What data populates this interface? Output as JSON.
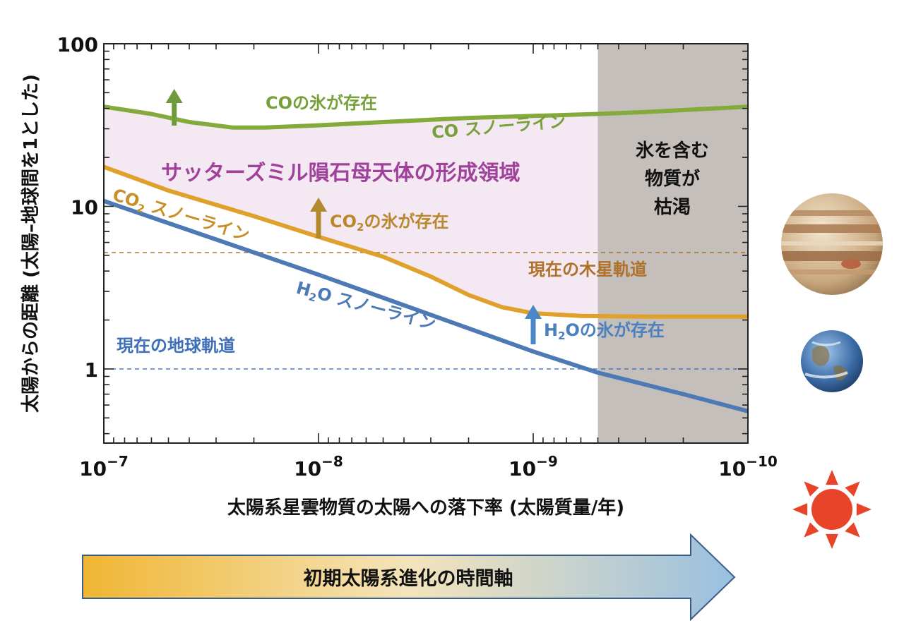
{
  "chart_data": {
    "type": "line",
    "x_scale": "log",
    "y_scale": "log",
    "x_reversed": true,
    "xlim": [
      1e-07,
      1e-10
    ],
    "ylim": [
      0.35,
      100
    ],
    "grid": false,
    "xlabel": "太陽系星雲物質の太陽への落下率 (太陽質量/年)",
    "ylabel": "太陽からの距離 (太陽–地球間を1とした)",
    "x_ticks": [
      {
        "value": 1e-07,
        "base": "10",
        "exp": "−7"
      },
      {
        "value": 1e-08,
        "base": "10",
        "exp": "−8"
      },
      {
        "value": 1e-09,
        "base": "10",
        "exp": "−9"
      },
      {
        "value": 1e-10,
        "base": "10",
        "exp": "−10"
      }
    ],
    "y_ticks": [
      {
        "value": 1,
        "label": "1"
      },
      {
        "value": 10,
        "label": "10"
      },
      {
        "value": 100,
        "label": "100"
      }
    ],
    "series": [
      {
        "name": "CO スノーライン",
        "color": "#85aa3c",
        "points": [
          {
            "x": 1e-07,
            "y": 41
          },
          {
            "x": 6e-08,
            "y": 37
          },
          {
            "x": 4e-08,
            "y": 33
          },
          {
            "x": 2.5e-08,
            "y": 30.5
          },
          {
            "x": 1.8e-08,
            "y": 30.5
          },
          {
            "x": 1e-08,
            "y": 31.5
          },
          {
            "x": 5e-09,
            "y": 33
          },
          {
            "x": 2e-09,
            "y": 35
          },
          {
            "x": 1e-09,
            "y": 36
          },
          {
            "x": 5e-10,
            "y": 37
          },
          {
            "x": 3e-10,
            "y": 38
          },
          {
            "x": 1e-10,
            "y": 41
          }
        ]
      },
      {
        "name": "CO₂ スノーライン",
        "color": "#e0a02c",
        "points": [
          {
            "x": 1e-07,
            "y": 17.5
          },
          {
            "x": 5e-08,
            "y": 12.5
          },
          {
            "x": 2e-08,
            "y": 8.7
          },
          {
            "x": 1e-08,
            "y": 6.5
          },
          {
            "x": 5e-09,
            "y": 4.9
          },
          {
            "x": 3e-09,
            "y": 3.7
          },
          {
            "x": 2e-09,
            "y": 2.85
          },
          {
            "x": 1.4e-09,
            "y": 2.4
          },
          {
            "x": 1e-09,
            "y": 2.2
          },
          {
            "x": 6e-10,
            "y": 2.12
          },
          {
            "x": 3e-10,
            "y": 2.1
          },
          {
            "x": 1e-10,
            "y": 2.1
          }
        ]
      },
      {
        "name": "H₂O スノーライン",
        "color": "#4d79b4",
        "points": [
          {
            "x": 1e-07,
            "y": 10.8
          },
          {
            "x": 1e-08,
            "y": 3.8
          },
          {
            "x": 1e-09,
            "y": 1.28
          },
          {
            "x": 5e-10,
            "y": 0.95
          },
          {
            "x": 2e-10,
            "y": 0.7
          },
          {
            "x": 1e-10,
            "y": 0.55
          }
        ]
      }
    ],
    "reference_lines": [
      {
        "name": "現在の木星軌道",
        "y": 5.2,
        "color": "#a86b28"
      },
      {
        "name": "現在の地球軌道",
        "y": 1.0,
        "color": "#3f6fb8"
      }
    ],
    "shaded_regions": [
      {
        "label": "氷を含む物質が枯渇",
        "lines": [
          "氷を含む",
          "物質が",
          "枯渇"
        ],
        "x_from": 5e-10,
        "x_to": 1e-10,
        "color": "#c4bfba"
      },
      {
        "label": "サッターズミル隕石母天体の形成領域",
        "between": [
          "CO スノーライン",
          "CO₂ スノーライン"
        ],
        "x_to": 5e-10,
        "color": "#f4e8f2"
      }
    ],
    "annotations": {
      "co_ice": "COの氷が存在",
      "co2_ice_pre": "CO",
      "co2_ice_sub": "2",
      "co2_ice_post": "の氷が存在",
      "h2o_ice_pre": "H",
      "h2o_ice_sub": "2",
      "h2o_ice_post": "Oの氷が存在",
      "co_line_label": "CO スノーライン",
      "co2_line_pre": "CO",
      "co2_line_sub": "2",
      "co2_line_post": " スノーライン",
      "h2o_line_pre": "H",
      "h2o_line_sub": "2",
      "h2o_line_post": "O スノーライン",
      "region_label": "サッターズミル隕石母天体の形成領域",
      "jupiter_orbit": "現在の木星軌道",
      "earth_orbit": "現在の地球軌道"
    }
  },
  "timeline_arrow": {
    "label": "初期太陽系進化の時間軸",
    "color_start": "#f0b632",
    "color_end": "#9ac0e0"
  },
  "icons": [
    "jupiter-icon",
    "earth-icon",
    "sun-icon"
  ]
}
